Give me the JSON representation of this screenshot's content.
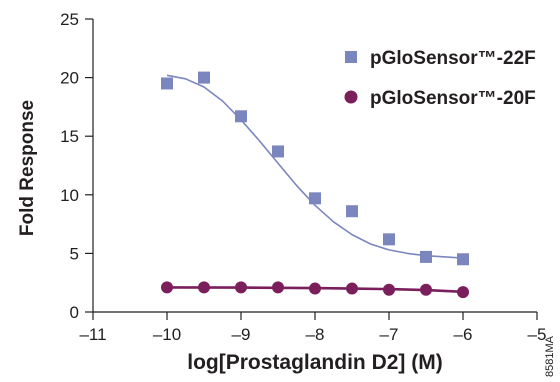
{
  "chart_data": {
    "type": "scatter",
    "xlabel": "log[Prostaglandin D2] (M)",
    "ylabel": "Fold Response",
    "xlim": [
      -11,
      -5
    ],
    "ylim": [
      0,
      25
    ],
    "x_ticks": [
      -11,
      -10,
      -9,
      -8,
      -7,
      -6,
      -5
    ],
    "x_tick_labels": [
      "–11",
      "–10",
      "–9",
      "–8",
      "–7",
      "–6",
      "–5"
    ],
    "y_ticks": [
      0,
      5,
      10,
      15,
      20,
      25
    ],
    "y_tick_labels": [
      "0",
      "5",
      "10",
      "15",
      "20",
      "25"
    ],
    "legend_position": "top-right",
    "grid": false,
    "series": [
      {
        "name": "pGloSensor™-22F",
        "marker": "square",
        "color": "#7b86bf",
        "x": [
          -10,
          -9.5,
          -9,
          -8.5,
          -8,
          -7.5,
          -7,
          -6.5,
          -6
        ],
        "y": [
          19.5,
          20.0,
          16.7,
          13.7,
          9.7,
          8.6,
          6.2,
          4.7,
          4.5
        ],
        "curve": [
          [
            -10,
            20.2
          ],
          [
            -9.75,
            19.9
          ],
          [
            -9.5,
            19.2
          ],
          [
            -9.25,
            18.0
          ],
          [
            -9,
            16.4
          ],
          [
            -8.75,
            14.6
          ],
          [
            -8.5,
            12.7
          ],
          [
            -8.25,
            10.8
          ],
          [
            -8,
            9.1
          ],
          [
            -7.75,
            7.7
          ],
          [
            -7.5,
            6.6
          ],
          [
            -7.25,
            5.8
          ],
          [
            -7,
            5.3
          ],
          [
            -6.75,
            5.0
          ],
          [
            -6.5,
            4.8
          ],
          [
            -6,
            4.6
          ]
        ]
      },
      {
        "name": "pGloSensor™-20F",
        "marker": "circle",
        "color": "#7a1f5c",
        "x": [
          -10,
          -9.5,
          -9,
          -8.5,
          -8,
          -7.5,
          -7,
          -6.5,
          -6
        ],
        "y": [
          2.1,
          2.1,
          2.1,
          2.1,
          2.0,
          2.0,
          1.9,
          1.9,
          1.7
        ],
        "curve": [
          [
            -10,
            2.1
          ],
          [
            -9,
            2.08
          ],
          [
            -8,
            2.04
          ],
          [
            -7.5,
            2.0
          ],
          [
            -7,
            1.95
          ],
          [
            -6.5,
            1.87
          ],
          [
            -6,
            1.72
          ]
        ]
      }
    ],
    "annotation": "8581MA"
  }
}
